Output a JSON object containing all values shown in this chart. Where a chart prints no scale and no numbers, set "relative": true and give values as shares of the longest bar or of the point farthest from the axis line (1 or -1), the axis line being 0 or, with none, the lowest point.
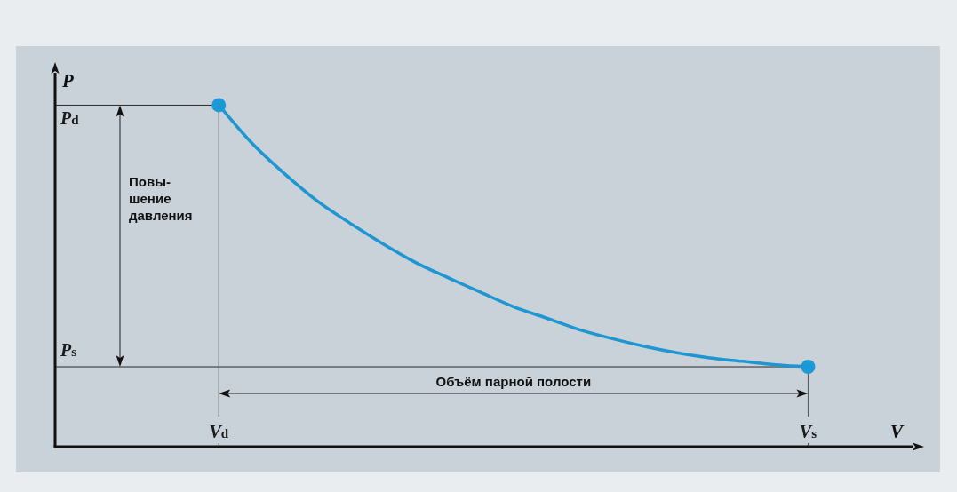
{
  "chart_data": {
    "type": "line",
    "relative": true,
    "xlabel": "V",
    "ylabel": "P",
    "categories": [
      null,
      null,
      null,
      null,
      null,
      "V$_{d}$",
      null,
      null,
      null,
      null,
      null,
      null,
      null,
      null,
      null,
      null,
      null,
      null,
      null,
      null,
      null,
      null,
      null,
      "V$_{s}$",
      null,
      null,
      null
    ],
    "series": [
      {
        "color": "#1e96d2",
        "values": [
          null,
          null,
          null,
          null,
          null,
          1,
          0.89,
          0.8,
          0.72,
          0.655,
          0.595,
          0.54,
          0.495,
          0.452,
          0.41,
          0.377,
          0.343,
          0.317,
          0.294,
          0.275,
          0.26,
          0.25,
          0.24,
          0.234,
          null,
          null,
          null
        ]
      },
      {
        "type": "scatter",
        "color": "#1a9ad6",
        "marker": "circle",
        "values": [
          null,
          null,
          null,
          null,
          null,
          1,
          null,
          null,
          null,
          null,
          null,
          null,
          null,
          null,
          null,
          null,
          null,
          null,
          null,
          null,
          null,
          null,
          null,
          0.234,
          null,
          null,
          null
        ]
      }
    ],
    "ref_lines": [
      {
        "axis": "y",
        "value": 1,
        "label": "P$_{d}$",
        "color": "#2a2a2a"
      },
      {
        "axis": "y",
        "value": 0.234,
        "label": "P$_{s}$",
        "color": "#2a2a2a"
      },
      {
        "axis": "x",
        "value": "V$_{d}$",
        "color": "#555555"
      },
      {
        "axis": "x",
        "value": "V$_{s}$",
        "color": "#555555"
      }
    ],
    "annotations": [
      "Повы-\nшение\nдавления",
      "Объём парной полости"
    ]
  }
}
